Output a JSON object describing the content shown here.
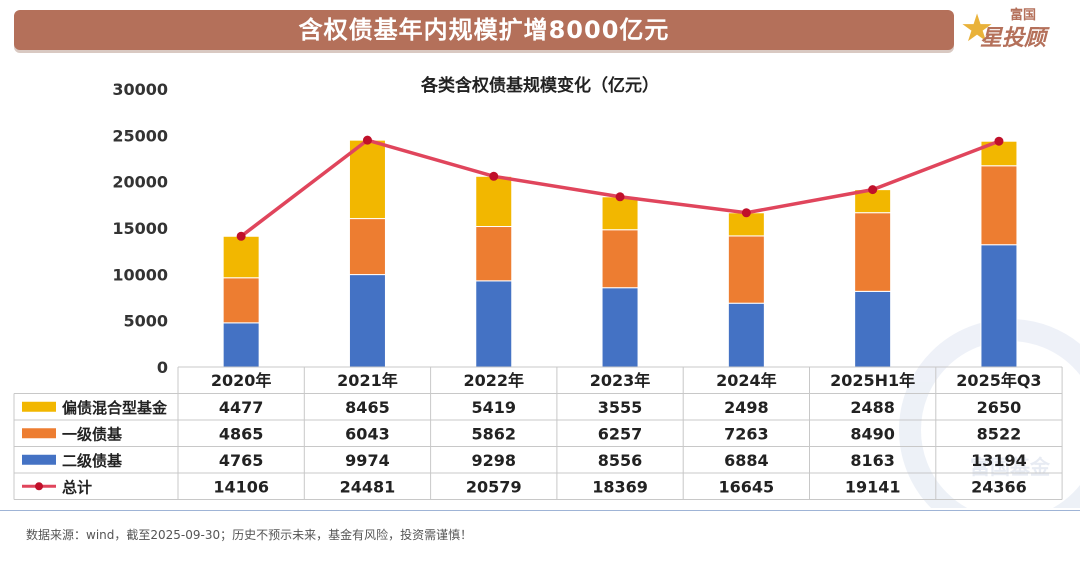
{
  "header": {
    "title": "含权债基年内规模扩增8000亿元",
    "logo_top": "富国",
    "logo_main": "星投顾"
  },
  "watermark": "富国基金",
  "footer": "数据来源：wind，截至2025-09-30；历史不预示未来，基金有风险，投资需谨慎！",
  "chart_data": {
    "type": "bar",
    "stacked": true,
    "title": "各类含权债基规模变化（亿元）",
    "categories": [
      "2020年",
      "2021年",
      "2022年",
      "2023年",
      "2024年",
      "2025H1年",
      "2025年Q3"
    ],
    "series": [
      {
        "name": "偏债混合型基金",
        "color": "#f2b700",
        "values": [
          4477,
          8465,
          5419,
          3555,
          2498,
          2488,
          2650
        ]
      },
      {
        "name": "一级债基",
        "color": "#ed7d31",
        "values": [
          4865,
          6043,
          5862,
          6257,
          7263,
          8490,
          8522
        ]
      },
      {
        "name": "二级债基",
        "color": "#4472c4",
        "values": [
          4765,
          9974,
          9298,
          8556,
          6884,
          8163,
          13194
        ]
      }
    ],
    "line_series": {
      "name": "总计",
      "color": "#e0455c",
      "values": [
        14106,
        24481,
        20579,
        18369,
        16645,
        19141,
        24366
      ]
    },
    "y_ticks": [
      0,
      5000,
      10000,
      15000,
      20000,
      25000,
      30000
    ],
    "ylim": [
      0,
      30000
    ],
    "grid": true
  }
}
